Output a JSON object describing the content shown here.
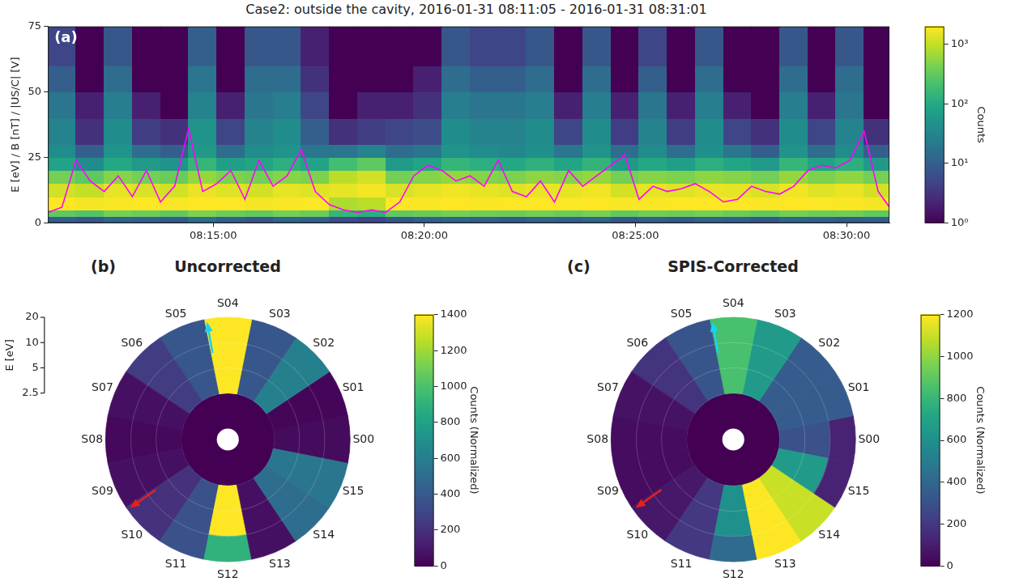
{
  "chart_data": [
    {
      "type": "heatmap",
      "title": "Case2: outside the cavity, 2016-01-31 08:11:05 - 2016-01-31 08:31:01",
      "panel": "(a)",
      "y_label": "E [eV] / B [nT] / |US/C| [V]",
      "xlim": [
        "08:11:05",
        "08:31:01"
      ],
      "xticks": [
        "08:15:00",
        "08:20:00",
        "08:25:00",
        "08:30:00"
      ],
      "ylim": [
        0,
        75
      ],
      "yticks": [
        0,
        25,
        50,
        75
      ],
      "grid": false,
      "x_bins": [
        "08:11:05",
        "08:11:45",
        "08:12:25",
        "08:13:05",
        "08:13:45",
        "08:14:25",
        "08:15:05",
        "08:15:45",
        "08:16:25",
        "08:17:05",
        "08:17:45",
        "08:18:25",
        "08:19:05",
        "08:19:45",
        "08:20:25",
        "08:21:05",
        "08:21:45",
        "08:22:25",
        "08:23:05",
        "08:23:45",
        "08:24:25",
        "08:25:05",
        "08:25:45",
        "08:26:25",
        "08:27:05",
        "08:27:45",
        "08:28:25",
        "08:29:05",
        "08:29:45",
        "08:30:25",
        "08:31:01"
      ],
      "y_bins": [
        0,
        2.5,
        5,
        10,
        15,
        20,
        25,
        30,
        40,
        50,
        60,
        75
      ],
      "cells": [
        [
          10,
          8,
          12,
          10,
          9,
          15,
          10,
          8,
          12,
          10,
          6,
          5,
          8,
          10,
          12,
          10,
          9,
          11,
          10,
          12,
          8,
          10,
          9,
          11,
          10,
          8,
          12,
          10,
          9,
          10
        ],
        [
          300,
          250,
          400,
          350,
          300,
          450,
          350,
          300,
          400,
          350,
          150,
          120,
          300,
          350,
          400,
          380,
          350,
          400,
          350,
          420,
          300,
          380,
          350,
          400,
          350,
          300,
          400,
          350,
          380,
          300
        ],
        [
          2000,
          1800,
          1900,
          2000,
          1900,
          2000,
          2000,
          1800,
          1900,
          1950,
          800,
          900,
          2000,
          1900,
          2000,
          1900,
          2000,
          2000,
          1950,
          2000,
          1900,
          1900,
          2000,
          2000,
          1950,
          1900,
          2000,
          1950,
          1900,
          1800
        ],
        [
          1200,
          1000,
          1500,
          1300,
          1200,
          1600,
          1400,
          1200,
          1500,
          1400,
          1500,
          1800,
          1300,
          1500,
          1700,
          1500,
          1400,
          1600,
          1500,
          1700,
          1200,
          1500,
          1400,
          1600,
          1500,
          1300,
          1700,
          1400,
          1600,
          1200
        ],
        [
          400,
          300,
          500,
          400,
          350,
          600,
          450,
          400,
          500,
          450,
          900,
          1200,
          400,
          500,
          600,
          500,
          450,
          550,
          500,
          600,
          400,
          500,
          450,
          550,
          500,
          400,
          600,
          450,
          550,
          400
        ],
        [
          80,
          40,
          100,
          60,
          50,
          150,
          70,
          90,
          120,
          80,
          200,
          300,
          60,
          90,
          150,
          120,
          100,
          130,
          90,
          140,
          60,
          100,
          70,
          120,
          90,
          60,
          150,
          80,
          120,
          60
        ],
        [
          40,
          10,
          50,
          15,
          10,
          60,
          15,
          40,
          50,
          20,
          20,
          30,
          15,
          20,
          50,
          40,
          35,
          45,
          20,
          50,
          15,
          40,
          15,
          45,
          20,
          10,
          50,
          15,
          40,
          10
        ],
        [
          30,
          3,
          40,
          4,
          3,
          50,
          5,
          30,
          40,
          10,
          3,
          4,
          5,
          6,
          40,
          30,
          30,
          40,
          5,
          40,
          4,
          30,
          4,
          40,
          5,
          3,
          40,
          5,
          30,
          3
        ],
        [
          20,
          2,
          25,
          2,
          1,
          30,
          2,
          20,
          25,
          5,
          1,
          2,
          2,
          3,
          25,
          20,
          20,
          25,
          2,
          25,
          2,
          20,
          2,
          25,
          2,
          1,
          25,
          2,
          20,
          1
        ],
        [
          10,
          1,
          15,
          1,
          1,
          20,
          1,
          15,
          15,
          3,
          1,
          1,
          1,
          2,
          15,
          10,
          10,
          15,
          1,
          15,
          1,
          10,
          1,
          15,
          1,
          1,
          15,
          1,
          15,
          1
        ],
        [
          5,
          1,
          8,
          1,
          1,
          10,
          1,
          8,
          8,
          2,
          1,
          1,
          1,
          1,
          8,
          5,
          5,
          8,
          1,
          8,
          1,
          5,
          1,
          8,
          1,
          1,
          8,
          1,
          8,
          1
        ]
      ],
      "colorbar": {
        "label": "Counts",
        "log": true,
        "lim": [
          1,
          2000
        ],
        "ticks": [
          {
            "value": 1,
            "label": "10⁰"
          },
          {
            "value": 10,
            "label": "10¹"
          },
          {
            "value": 100,
            "label": "10²"
          },
          {
            "value": 1000,
            "label": "10³"
          }
        ]
      },
      "series": [
        {
          "type": "line",
          "color": "#ff00ff",
          "x": [
            "08:11:05",
            "08:11:25",
            "08:11:45",
            "08:12:05",
            "08:12:25",
            "08:12:45",
            "08:13:05",
            "08:13:25",
            "08:13:45",
            "08:14:05",
            "08:14:25",
            "08:14:45",
            "08:15:05",
            "08:15:25",
            "08:15:45",
            "08:16:05",
            "08:16:25",
            "08:16:45",
            "08:17:05",
            "08:17:25",
            "08:17:45",
            "08:18:05",
            "08:18:25",
            "08:18:45",
            "08:19:05",
            "08:19:25",
            "08:19:45",
            "08:20:05",
            "08:20:25",
            "08:20:45",
            "08:21:05",
            "08:21:25",
            "08:21:45",
            "08:22:05",
            "08:22:25",
            "08:22:45",
            "08:23:05",
            "08:23:25",
            "08:23:45",
            "08:24:05",
            "08:24:25",
            "08:24:45",
            "08:25:05",
            "08:25:25",
            "08:25:45",
            "08:26:05",
            "08:26:25",
            "08:26:45",
            "08:27:05",
            "08:27:25",
            "08:27:45",
            "08:28:05",
            "08:28:25",
            "08:28:45",
            "08:29:05",
            "08:29:25",
            "08:29:45",
            "08:30:05",
            "08:30:25",
            "08:30:45",
            "08:31:01"
          ],
          "values": [
            4,
            6,
            24,
            16,
            12,
            18,
            10,
            20,
            8,
            14,
            36,
            12,
            15,
            20,
            9,
            24,
            14,
            18,
            28,
            12,
            7,
            5,
            4,
            5,
            4,
            8,
            18,
            22,
            20,
            16,
            18,
            14,
            24,
            12,
            10,
            16,
            8,
            20,
            14,
            18,
            22,
            26,
            9,
            14,
            12,
            13,
            15,
            12,
            8,
            9,
            14,
            12,
            11,
            14,
            20,
            22,
            21,
            24,
            35,
            12,
            6
          ]
        }
      ]
    },
    {
      "type": "polar_heatmap",
      "panel": "(b)",
      "title": "Uncorrected",
      "categories": [
        "S00",
        "S01",
        "S02",
        "S03",
        "S04",
        "S05",
        "S06",
        "S07",
        "S08",
        "S09",
        "S10",
        "S11",
        "S12",
        "S13",
        "S14",
        "S15"
      ],
      "r_label": "E [eV]",
      "log": true,
      "rlim": [
        2.5,
        20
      ],
      "rticks": [
        2.5,
        5,
        10,
        20
      ],
      "r_bins": [
        2.5,
        5,
        10,
        20
      ],
      "cells": [
        [
          40,
          40,
          40
        ],
        [
          20,
          20,
          20
        ],
        [
          600,
          600,
          600
        ],
        [
          380,
          380,
          380
        ],
        [
          1400,
          1400,
          1400
        ],
        [
          380,
          380,
          380
        ],
        [
          250,
          250,
          250
        ],
        [
          60,
          60,
          60
        ],
        [
          30,
          30,
          30
        ],
        [
          60,
          60,
          60
        ],
        [
          200,
          200,
          200
        ],
        [
          350,
          350,
          350
        ],
        [
          1400,
          1400,
          900
        ],
        [
          60,
          60,
          60
        ],
        [
          500,
          500,
          500
        ],
        [
          550,
          550,
          550
        ]
      ],
      "colorbar": {
        "label": "Counts (Normalized)",
        "lim": [
          0,
          1400
        ],
        "ticks": [
          0,
          200,
          400,
          600,
          800,
          1000,
          1200,
          1400
        ]
      },
      "arrows": [
        {
          "color": "#19d3f0",
          "angle": 100
        },
        {
          "color": "#e8201a",
          "angle": 215
        }
      ]
    },
    {
      "type": "polar_heatmap",
      "panel": "(c)",
      "title": "SPIS-Corrected",
      "categories": [
        "S00",
        "S01",
        "S02",
        "S03",
        "S04",
        "S05",
        "S06",
        "S07",
        "S08",
        "S09",
        "S10",
        "S11",
        "S12",
        "S13",
        "S14",
        "S15"
      ],
      "tick_labels": false,
      "log": true,
      "rlim": [
        2.5,
        20
      ],
      "r_bins": [
        2.5,
        5,
        10,
        20
      ],
      "cells": [
        [
          300,
          300,
          120
        ],
        [
          350,
          350,
          350
        ],
        [
          350,
          350,
          350
        ],
        [
          650,
          650,
          650
        ],
        [
          850,
          850,
          850
        ],
        [
          320,
          320,
          320
        ],
        [
          180,
          180,
          180
        ],
        [
          60,
          60,
          60
        ],
        [
          40,
          40,
          40
        ],
        [
          40,
          40,
          40
        ],
        [
          80,
          80,
          80
        ],
        [
          200,
          200,
          200
        ],
        [
          600,
          600,
          420
        ],
        [
          1200,
          1200,
          1200
        ],
        [
          1100,
          1100,
          1100
        ],
        [
          650,
          650,
          120
        ]
      ],
      "colorbar": {
        "label": "Counts (Normalized)",
        "lim": [
          0,
          1200
        ],
        "ticks": [
          0,
          200,
          400,
          600,
          800,
          1000,
          1200
        ]
      },
      "arrows": [
        {
          "color": "#19d3f0",
          "angle": 100
        },
        {
          "color": "#e8201a",
          "angle": 215
        }
      ]
    }
  ]
}
